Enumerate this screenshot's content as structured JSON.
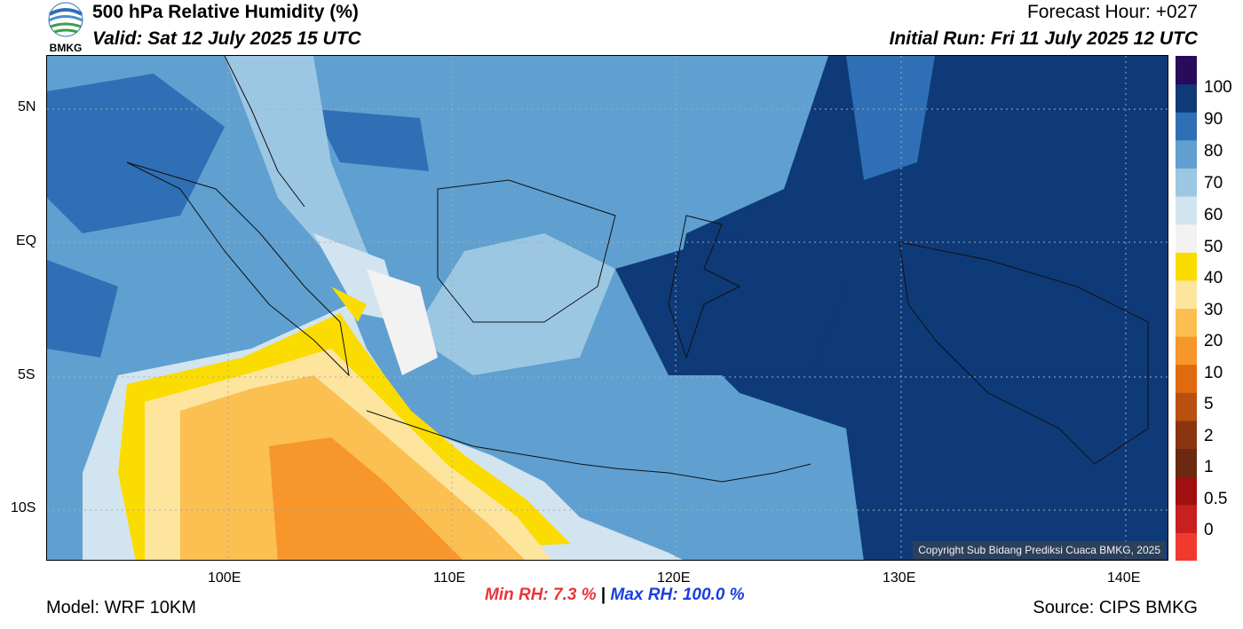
{
  "header": {
    "logo_text": "BMKG",
    "title": "500 hPa Relative Humidity (%)",
    "valid": "Valid: Sat 12 July 2025 15 UTC",
    "forecast_hour": "Forecast Hour: +027",
    "initial_run": "Initial Run: Fri 11 July 2025 12 UTC"
  },
  "map": {
    "lat_labels": [
      "5N",
      "EQ",
      "5S",
      "10S"
    ],
    "lon_labels": [
      "100E",
      "110E",
      "120E",
      "130E",
      "140E"
    ],
    "copyright": "Copyright Sub Bidang Prediksi Cuaca BMKG, 2025"
  },
  "colorbar": {
    "labels": [
      "100",
      "90",
      "80",
      "70",
      "60",
      "50",
      "40",
      "30",
      "20",
      "10",
      "5",
      "2",
      "1",
      "0.5",
      "0"
    ],
    "colors": [
      "#f03a2e",
      "#c81f1f",
      "#a01010",
      "#6b2a10",
      "#8a3410",
      "#b8500e",
      "#e06a10",
      "#f7962a",
      "#fbbf52",
      "#fde59e",
      "#fbdc00",
      "#f2f2f2",
      "#d2e4f0",
      "#9cc7e2",
      "#5fa0d0",
      "#2f6fb5",
      "#0f3a78",
      "#2a0a5a"
    ]
  },
  "footer": {
    "model": "Model: WRF 10KM",
    "min_rh_label": "Min RH:",
    "min_rh_value": "7.3 %",
    "separator": "|",
    "max_rh_label": "Max RH:",
    "max_rh_value": "100.0 %",
    "source": "Source: CIPS BMKG"
  }
}
